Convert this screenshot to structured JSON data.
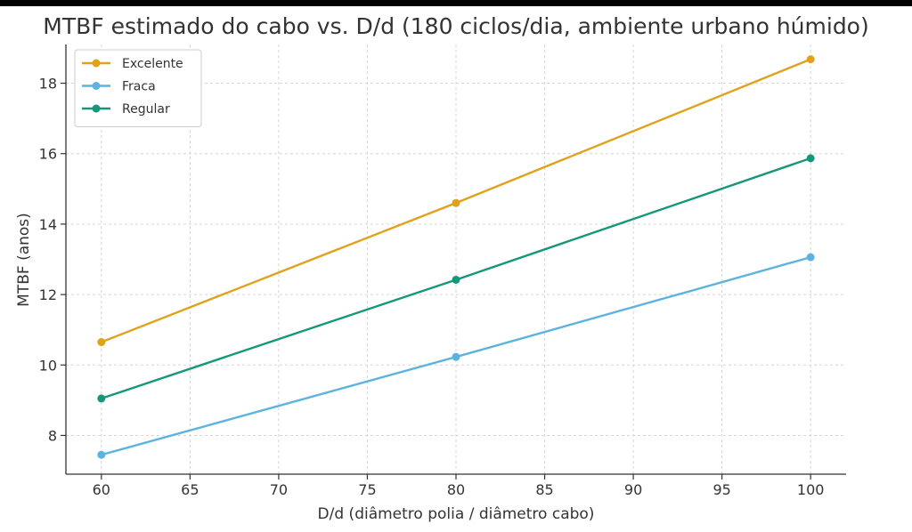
{
  "chart_data": {
    "type": "line",
    "title": "MTBF estimado do cabo vs. D/d (180 ciclos/dia, ambiente urbano húmido)",
    "xlabel": "D/d (diâmetro polia / diâmetro cabo)",
    "ylabel": "MTBF (anos)",
    "xlim": [
      58,
      102
    ],
    "ylim": [
      6.9,
      19.1
    ],
    "xticks": [
      60,
      65,
      70,
      75,
      80,
      85,
      90,
      95,
      100
    ],
    "yticks": [
      8,
      10,
      12,
      14,
      16,
      18
    ],
    "grid": true,
    "legend_position": "top-left",
    "x": [
      60,
      80,
      100
    ],
    "series": [
      {
        "name": "Excelente",
        "color": "#E1A21B",
        "values": [
          10.65,
          14.6,
          18.68
        ]
      },
      {
        "name": "Fraca",
        "color": "#5DB3E0",
        "values": [
          7.45,
          10.23,
          13.06
        ]
      },
      {
        "name": "Regular",
        "color": "#16977A",
        "values": [
          9.05,
          12.42,
          15.87
        ]
      }
    ]
  }
}
